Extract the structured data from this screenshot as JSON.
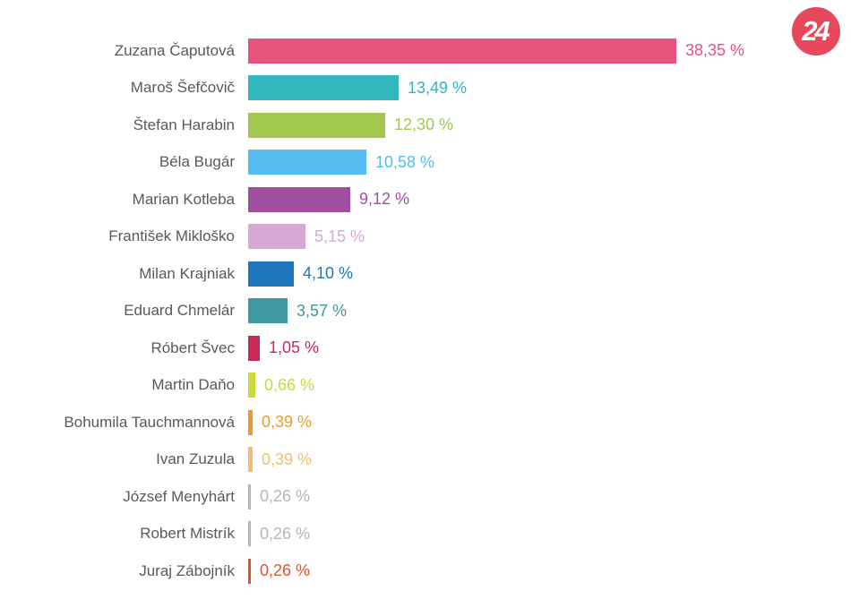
{
  "page": {
    "background_color": "#ffffff"
  },
  "logo": {
    "label": "24",
    "bg_color": "#e8485c",
    "text_color": "#ffffff"
  },
  "chart_data": {
    "type": "bar",
    "orientation": "horizontal",
    "title": "",
    "xlabel": "",
    "ylabel": "",
    "xlim": [
      0,
      40
    ],
    "grid": false,
    "legend": "none",
    "label_color": "#58595b",
    "categories": [
      "Zuzana Čaputová",
      "Maroš Šefčovič",
      "Štefan Harabin",
      "Béla Bugár",
      "Marian Kotleba",
      "František Mikloško",
      "Milan Krajniak",
      "Eduard Chmelár",
      "Róbert Švec",
      "Martin Daňo",
      "Bohumila Tauchmannová",
      "Ivan Zuzula",
      "József Menyhárt",
      "Robert Mistrík",
      "Juraj Zábojník"
    ],
    "values": [
      38.35,
      13.49,
      12.3,
      10.58,
      9.12,
      5.15,
      4.1,
      3.57,
      1.05,
      0.66,
      0.39,
      0.39,
      0.26,
      0.26,
      0.26
    ],
    "value_labels": [
      "38,35 %",
      "13,49 %",
      "12,30 %",
      "10,58 %",
      "9,12 %",
      "5,15 %",
      "4,10 %",
      "3,57 %",
      "1,05 %",
      "0,66 %",
      "0,39 %",
      "0,39 %",
      "0,26 %",
      "0,26 %",
      "0,26 %"
    ],
    "bar_colors": [
      "#e8537e",
      "#30b8bd",
      "#a2c84f",
      "#55bdee",
      "#a04ea0",
      "#d8a8d5",
      "#1d76bd",
      "#3f99a1",
      "#c62a56",
      "#ccd83f",
      "#ee9a2a",
      "#f4bc72",
      "#b5b6b7",
      "#b5b6b7",
      "#e25231"
    ]
  }
}
